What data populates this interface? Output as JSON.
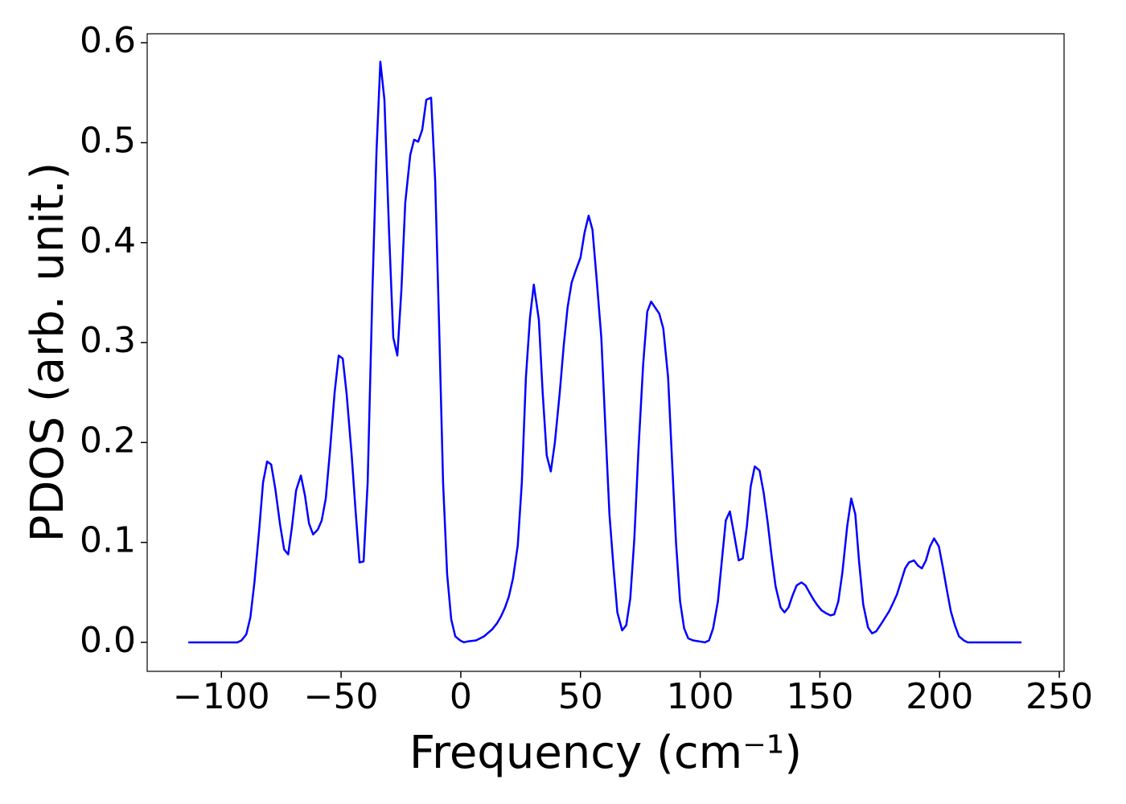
{
  "chart_data": {
    "type": "line",
    "xlabel": "Frequency (cm⁻¹)",
    "ylabel": "PDOS (arb. unit.)",
    "xlim": [
      -131,
      252
    ],
    "ylim": [
      -0.029,
      0.609
    ],
    "xticks": [
      {
        "value": -100,
        "label": "−100"
      },
      {
        "value": -50,
        "label": "−50"
      },
      0,
      50,
      100,
      150,
      200,
      250
    ],
    "yticks": [
      {
        "value": 0,
        "label": "0.0"
      },
      0.1,
      0.2,
      0.3,
      0.4,
      0.5,
      0.6
    ],
    "grid": false,
    "x": [
      -113.8,
      -93.3,
      -91.6,
      -89.6,
      -87.9,
      -86.2,
      -84.2,
      -82.6,
      -80.9,
      -79.2,
      -77.5,
      -75.5,
      -73.8,
      -72.1,
      -70.5,
      -68.8,
      -66.8,
      -65.1,
      -63.4,
      -61.7,
      -59.7,
      -58.1,
      -56.4,
      -54.7,
      -52.7,
      -51.0,
      -49.3,
      -47.7,
      -45.6,
      -43.9,
      -42.3,
      -40.6,
      -38.9,
      -36.9,
      -35.2,
      -33.6,
      -31.9,
      -29.9,
      -28.2,
      -26.5,
      -24.8,
      -23.2,
      -21.1,
      -19.5,
      -17.8,
      -16.1,
      -14.4,
      -12.4,
      -10.7,
      -9.1,
      -7.4,
      -5.7,
      -4.0,
      -2.3,
      -0.3,
      1.3,
      3.0,
      6.4,
      9.7,
      13.1,
      15.1,
      16.8,
      18.5,
      20.1,
      21.8,
      23.8,
      25.5,
      27.2,
      28.9,
      30.5,
      32.6,
      34.2,
      35.9,
      37.6,
      39.3,
      41.3,
      43.0,
      44.6,
      46.3,
      48.0,
      50.0,
      51.7,
      53.4,
      55.0,
      56.7,
      58.7,
      60.4,
      62.1,
      63.8,
      65.4,
      67.4,
      69.1,
      70.8,
      72.5,
      74.2,
      76.2,
      77.9,
      79.5,
      81.2,
      82.9,
      84.6,
      86.6,
      88.3,
      89.9,
      91.6,
      93.3,
      95.0,
      97.0,
      102.0,
      103.7,
      105.4,
      107.4,
      109.1,
      110.7,
      112.4,
      114.1,
      116.1,
      117.8,
      119.5,
      121.1,
      122.8,
      124.8,
      126.5,
      128.2,
      129.9,
      131.5,
      133.6,
      135.2,
      136.9,
      138.6,
      140.3,
      142.3,
      144.0,
      145.6,
      147.3,
      149.0,
      150.7,
      152.7,
      154.4,
      156.0,
      157.7,
      159.4,
      161.4,
      163.1,
      164.8,
      166.4,
      168.1,
      170.1,
      171.8,
      173.5,
      175.2,
      176.8,
      178.9,
      180.5,
      182.2,
      183.9,
      185.6,
      187.2,
      189.3,
      190.9,
      192.6,
      194.3,
      196.0,
      197.7,
      199.7,
      201.3,
      203.0,
      204.7,
      206.4,
      208.1,
      210.1,
      211.7,
      234.2
    ],
    "series": [
      {
        "color": "#0000ff",
        "values": [
          0,
          0,
          0.002,
          0.008,
          0.025,
          0.06,
          0.113,
          0.16,
          0.181,
          0.178,
          0.154,
          0.118,
          0.093,
          0.088,
          0.116,
          0.152,
          0.167,
          0.147,
          0.119,
          0.108,
          0.113,
          0.122,
          0.144,
          0.19,
          0.25,
          0.287,
          0.284,
          0.249,
          0.188,
          0.13,
          0.08,
          0.081,
          0.16,
          0.353,
          0.492,
          0.581,
          0.543,
          0.407,
          0.305,
          0.287,
          0.353,
          0.44,
          0.488,
          0.503,
          0.501,
          0.513,
          0.543,
          0.545,
          0.462,
          0.321,
          0.16,
          0.068,
          0.023,
          0.006,
          0.002,
          0,
          0.001,
          0.002,
          0.006,
          0.013,
          0.019,
          0.026,
          0.035,
          0.046,
          0.064,
          0.097,
          0.16,
          0.265,
          0.325,
          0.358,
          0.323,
          0.25,
          0.187,
          0.171,
          0.2,
          0.249,
          0.297,
          0.335,
          0.36,
          0.372,
          0.385,
          0.41,
          0.427,
          0.413,
          0.365,
          0.305,
          0.215,
          0.128,
          0.075,
          0.03,
          0.012,
          0.017,
          0.044,
          0.104,
          0.192,
          0.279,
          0.331,
          0.341,
          0.335,
          0.329,
          0.314,
          0.265,
          0.179,
          0.1,
          0.041,
          0.014,
          0.004,
          0.002,
          0,
          0.002,
          0.014,
          0.041,
          0.083,
          0.122,
          0.131,
          0.109,
          0.082,
          0.084,
          0.116,
          0.156,
          0.176,
          0.172,
          0.15,
          0.12,
          0.085,
          0.056,
          0.035,
          0.03,
          0.035,
          0.047,
          0.057,
          0.06,
          0.057,
          0.05,
          0.043,
          0.037,
          0.032,
          0.029,
          0.027,
          0.028,
          0.041,
          0.07,
          0.116,
          0.144,
          0.128,
          0.08,
          0.038,
          0.015,
          0.009,
          0.011,
          0.017,
          0.023,
          0.031,
          0.039,
          0.048,
          0.061,
          0.074,
          0.08,
          0.082,
          0.077,
          0.074,
          0.082,
          0.096,
          0.104,
          0.096,
          0.076,
          0.053,
          0.031,
          0.017,
          0.006,
          0.002,
          0,
          0
        ]
      }
    ]
  }
}
